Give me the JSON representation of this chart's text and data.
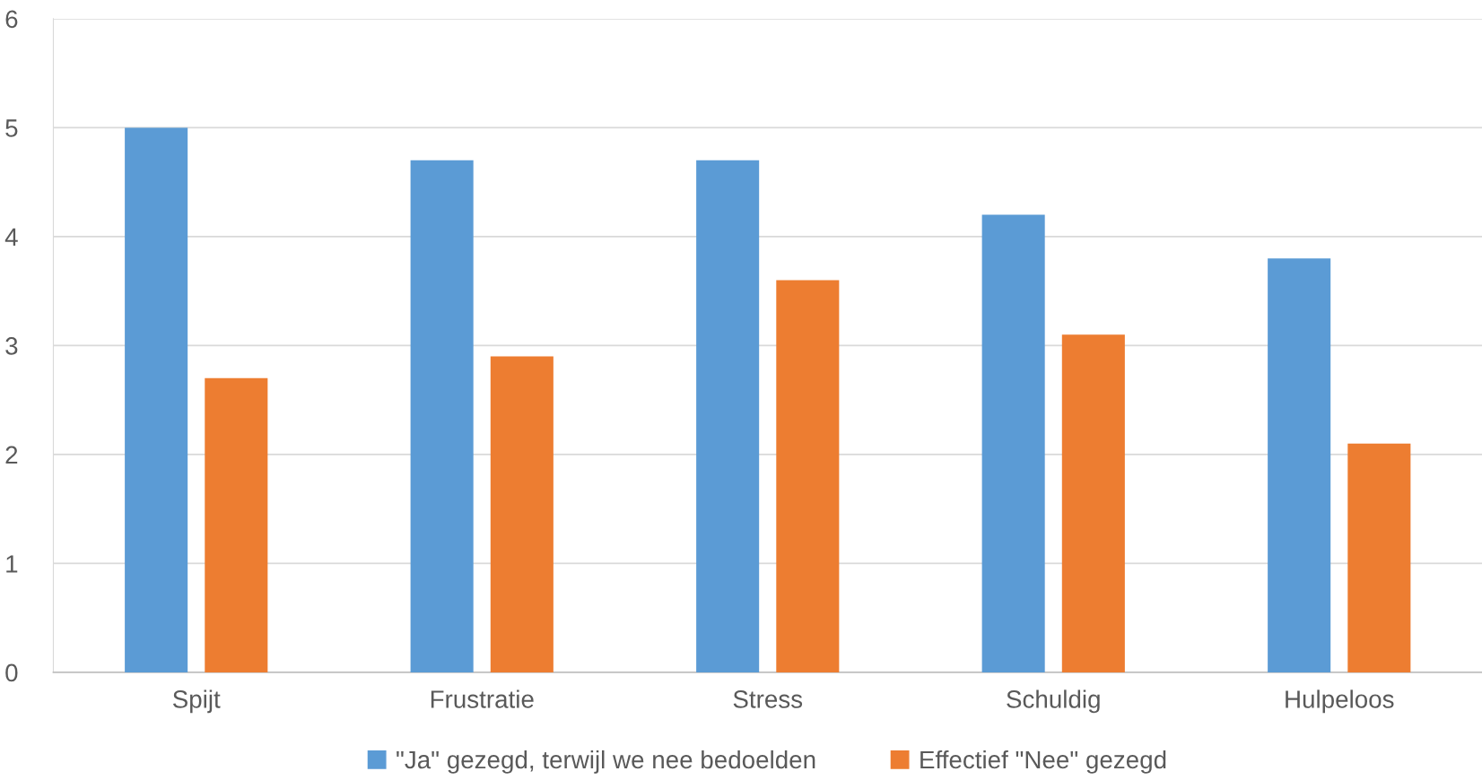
{
  "chart_data": {
    "type": "bar",
    "categories": [
      "Spijt",
      "Frustratie",
      "Stress",
      "Schuldig",
      "Hulpeloos"
    ],
    "series": [
      {
        "name": "\"Ja\" gezegd, terwijl we nee bedoelden",
        "color": "#5b9bd5",
        "values": [
          5,
          4.7,
          4.7,
          4.2,
          3.8
        ]
      },
      {
        "name": "Effectief \"Nee\" gezegd",
        "color": "#ed7d31",
        "values": [
          2.7,
          2.9,
          3.6,
          3.1,
          2.1
        ]
      }
    ],
    "ylim": [
      0,
      6
    ],
    "yticks": [
      0,
      1,
      2,
      3,
      4,
      5,
      6
    ],
    "grid": "y",
    "legend": "bottom"
  }
}
